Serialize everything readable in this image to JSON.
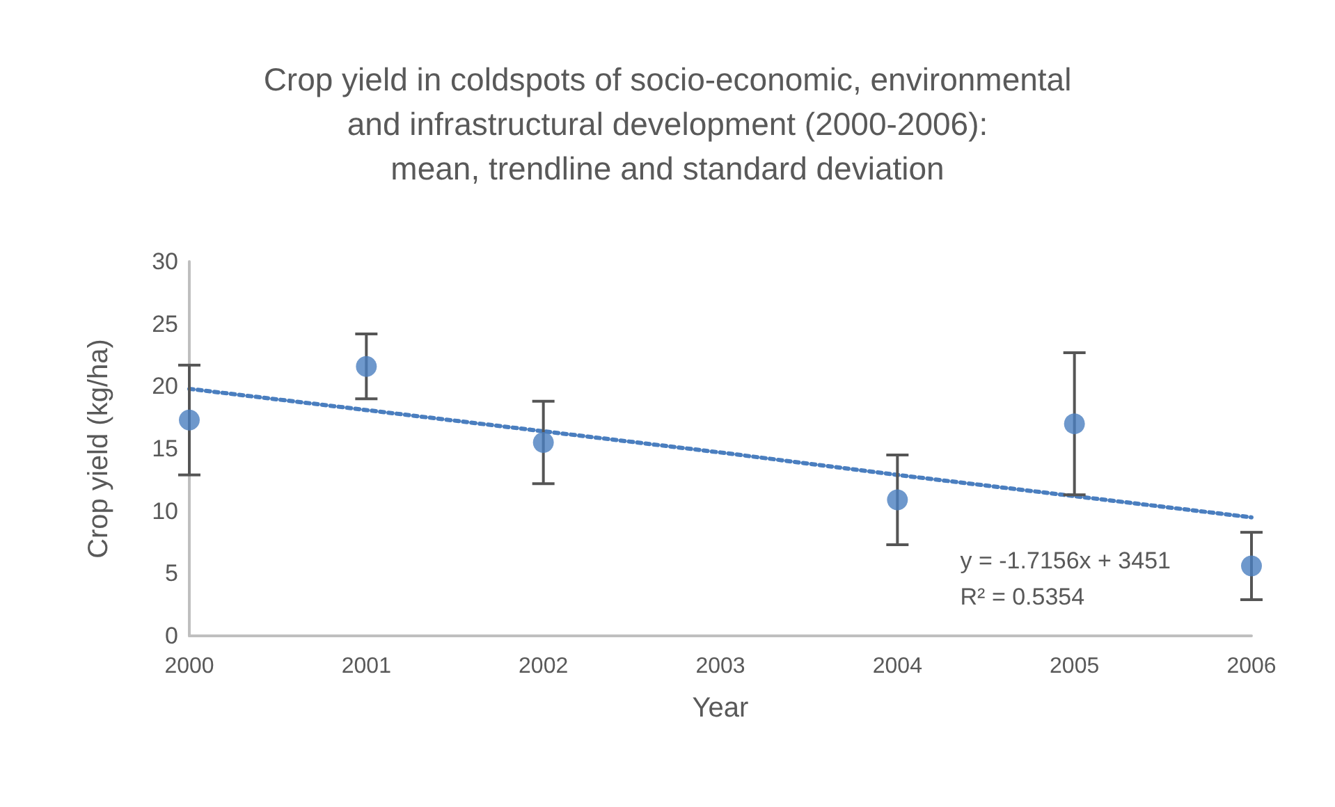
{
  "chart_data": {
    "type": "scatter",
    "title": "Crop yield in coldspots of socio-economic, environmental\nand infrastructural development (2000-2006):\nmean, trendline and standard deviation",
    "xlabel": "Year",
    "ylabel": "Crop yield (kg/ha)",
    "categories": [
      "2000",
      "2001",
      "2002",
      "2003",
      "2004",
      "2005",
      "2006"
    ],
    "series": [
      {
        "color": "#4a7ebf",
        "values": [
          17.3,
          21.6,
          15.5,
          null,
          10.9,
          17.0,
          5.6
        ],
        "errors": [
          4.4,
          2.6,
          3.3,
          null,
          3.6,
          5.7,
          2.7
        ],
        "marker": "circle"
      },
      {
        "type": "line",
        "color": "#4a7ebf",
        "values": [
          19.8,
          18.1,
          16.4,
          14.7,
          12.9,
          11.2,
          9.5
        ],
        "line_style": "dotted",
        "marker": "none"
      }
    ],
    "annotations": [
      "y = -1.7156x + 3451",
      "R² = 0.5354"
    ],
    "ylim": [
      0,
      30
    ],
    "yticks": [
      0,
      5,
      10,
      15,
      20,
      25,
      30
    ],
    "grid": false
  }
}
